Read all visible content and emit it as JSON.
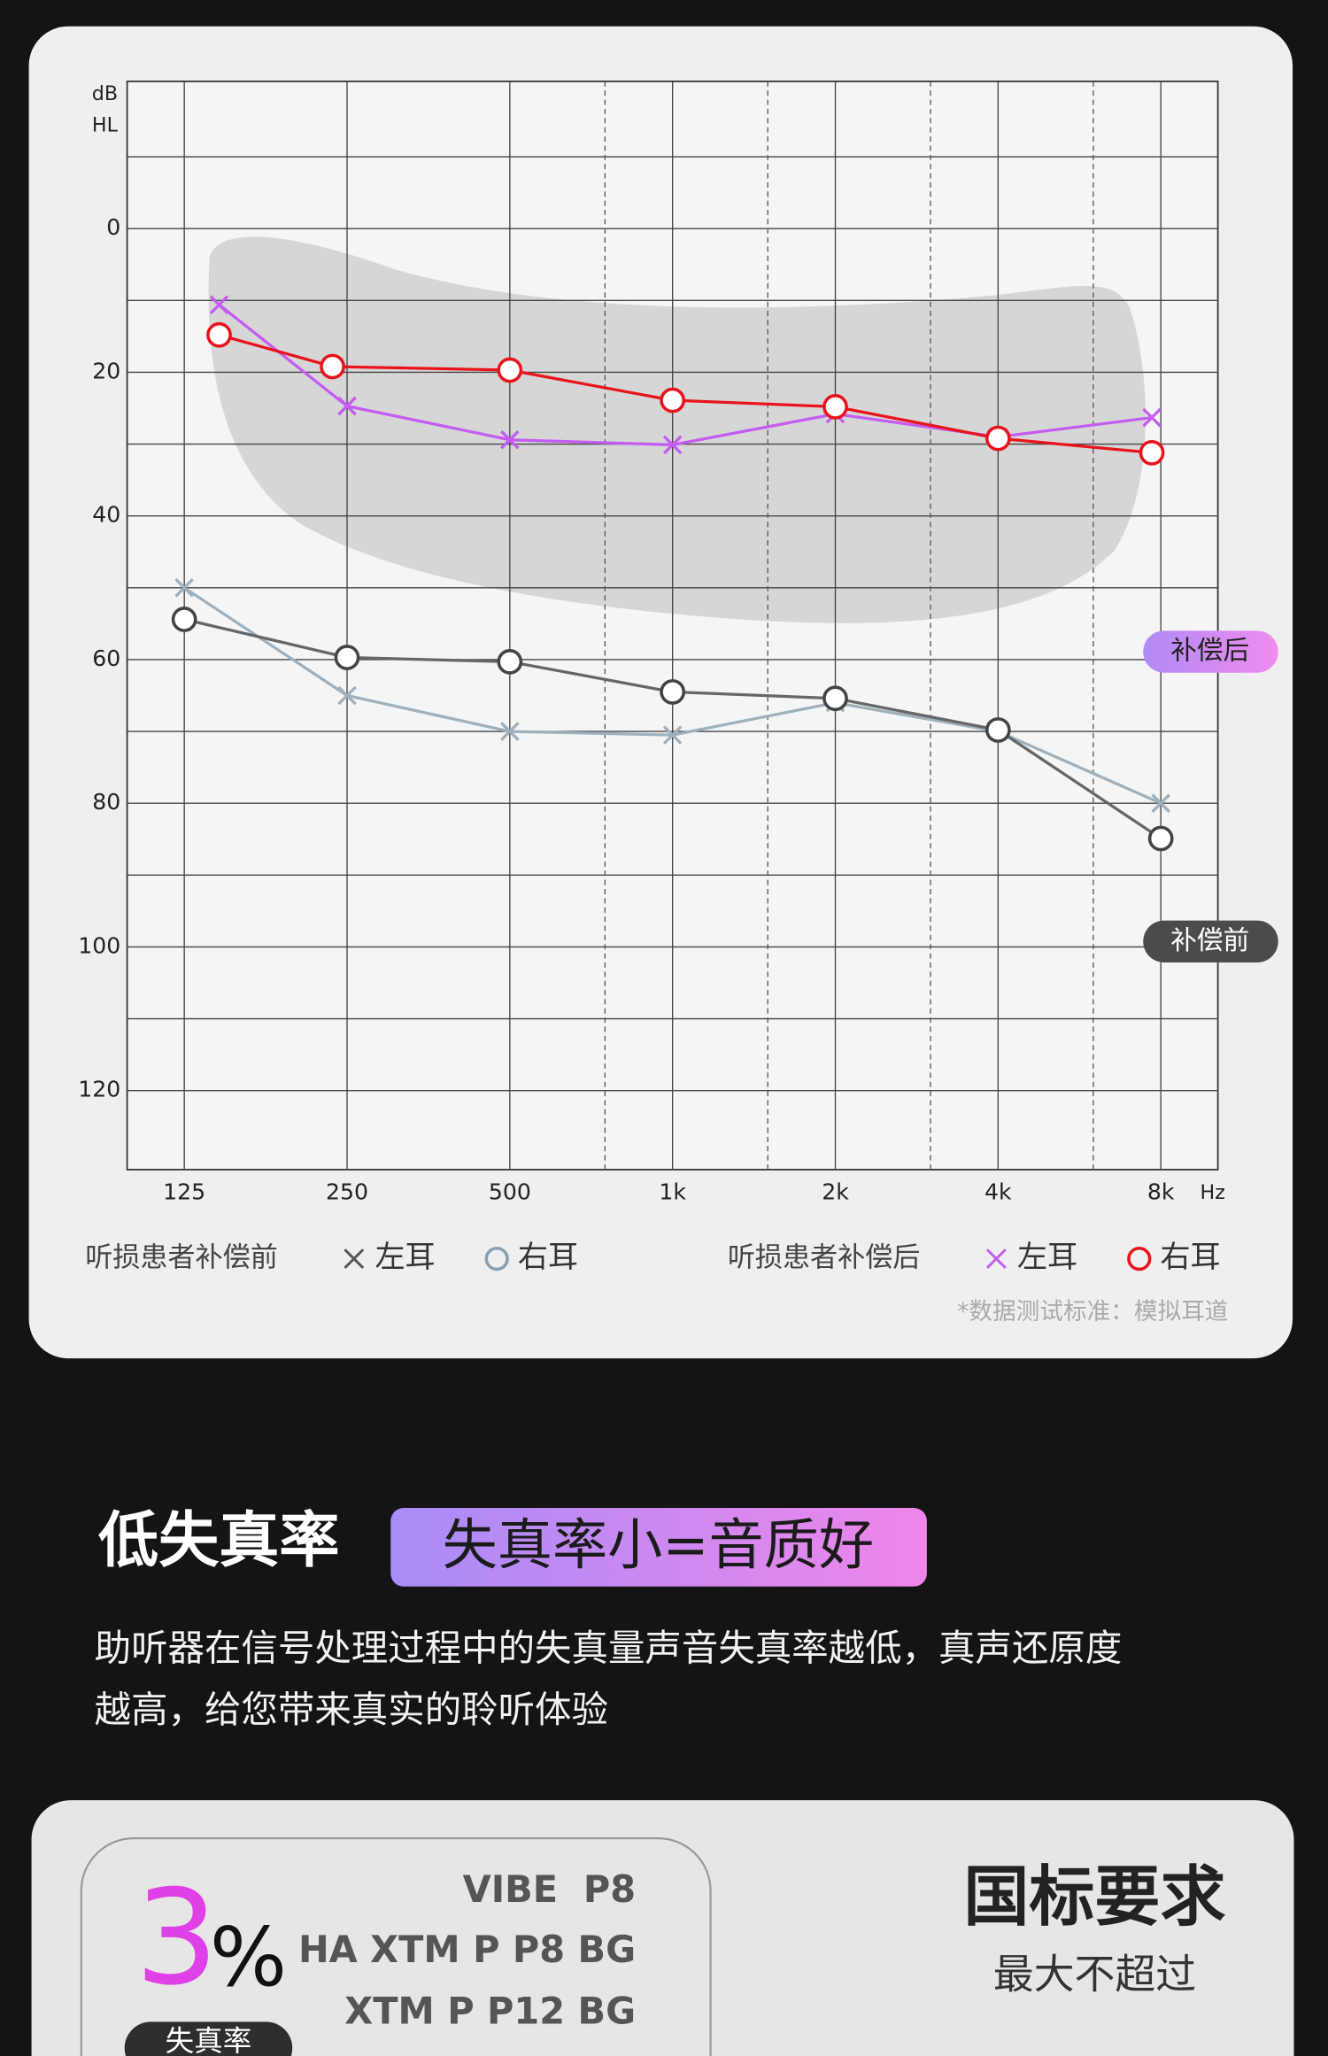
{
  "chart_data": {
    "type": "line",
    "y_label_lines": [
      "dB",
      "HL"
    ],
    "x_unit": "Hz",
    "xlim": [
      98,
      10200
    ],
    "x_log": true,
    "xticks": [
      125,
      250,
      500,
      {
        "value": 1000,
        "label": "1k"
      },
      {
        "value": 2000,
        "label": "2k"
      },
      {
        "value": 4000,
        "label": "4k"
      },
      {
        "value": 8000,
        "label": "8k"
      }
    ],
    "x_minor_ticks": [
      750,
      1500,
      3000,
      6000
    ],
    "ylim": [
      -20.5,
      131
    ],
    "y_inverted": true,
    "yticks": [
      0,
      20,
      40,
      60,
      80,
      100,
      120
    ],
    "y_minor_ticks": [
      -10,
      10,
      30,
      50,
      70,
      90,
      110
    ],
    "grid": true,
    "legend_groups": [
      "听损患者补偿前",
      "听损患者补偿后"
    ],
    "series": [
      {
        "name": "左耳",
        "marker": "x",
        "color": "#9fb0bd",
        "x": [
          125,
          250,
          500,
          1000,
          2000,
          4000,
          8000
        ],
        "values": [
          50,
          65,
          70,
          70.5,
          66,
          70,
          80
        ]
      },
      {
        "name": "右耳",
        "marker": "circle",
        "color": "#666666",
        "x": [
          125,
          250,
          500,
          1000,
          2000,
          4000,
          8000
        ],
        "values": [
          54.4,
          59.7,
          60.3,
          64.5,
          65.4,
          69.8,
          84.9
        ]
      },
      {
        "name": "左耳",
        "marker": "x",
        "color": "#c45cf2",
        "x": [
          145,
          250,
          500,
          1000,
          2000,
          4000,
          7700
        ],
        "values": [
          10.6,
          24.7,
          29.4,
          30.1,
          25.8,
          29,
          26.3
        ]
      },
      {
        "name": "右耳",
        "marker": "circle",
        "color": "#e8141c",
        "x": [
          145,
          235,
          500,
          1000,
          2000,
          4000,
          7700
        ],
        "values": [
          14.8,
          19.2,
          19.7,
          23.9,
          24.8,
          29.2,
          31.2
        ]
      }
    ],
    "annotations": [
      "补偿后",
      "补偿前"
    ],
    "footnote": "*数据测试标准：模拟耳道"
  },
  "section": {
    "title": "低失真率",
    "badge": "失真率小=音质好",
    "description_lines": [
      "助听器在信号处理过程中的失真量声音失真率越低，真声还原度",
      "越高，给您带来真实的聆听体验"
    ]
  },
  "comparison": {
    "value": 3,
    "unit": "%",
    "label": "失真率",
    "models": [
      "VIBE  P8",
      "HA XTM P P8 BG",
      "XTM P P12 BG"
    ],
    "standard_title": "国标要求",
    "standard_subtitle": "最大不超过"
  }
}
